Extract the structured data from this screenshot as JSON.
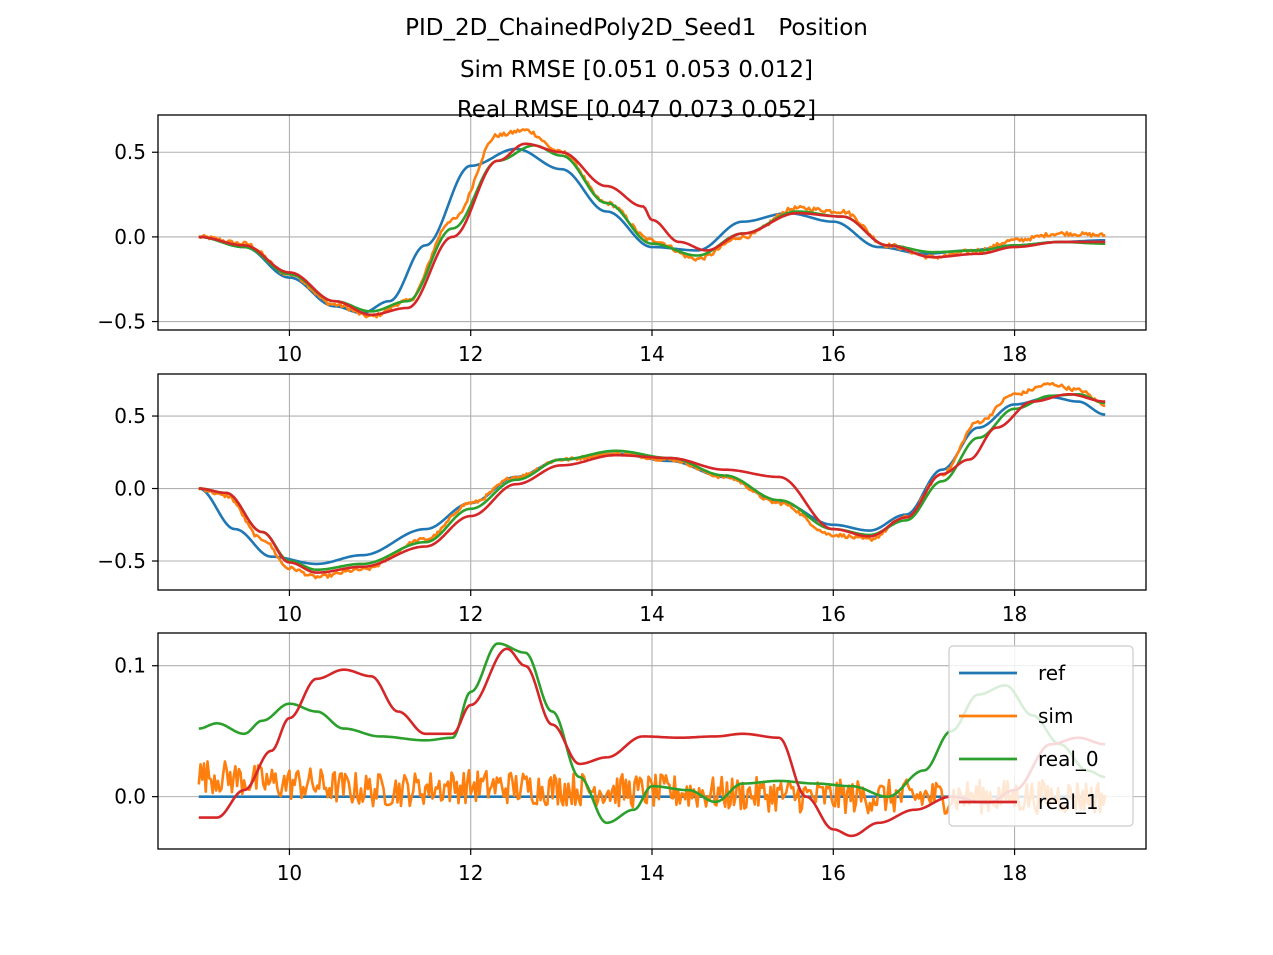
{
  "title_lines": [
    "PID_2D_ChainedPoly2D_Seed1   Position",
    "Sim RMSE [0.051 0.053 0.012]",
    "Real RMSE [0.047 0.073 0.052]"
  ],
  "colors": {
    "ref": "#1f77b4",
    "sim": "#ff7f0e",
    "real_0": "#2ca02c",
    "real_1": "#d62728",
    "grid": "#b0b0b0",
    "axes": "#000000"
  },
  "chart_data": [
    {
      "type": "line",
      "xlim": [
        8.55,
        19.45
      ],
      "ylim": [
        -0.55,
        0.72
      ],
      "xticks": [
        10,
        12,
        14,
        16,
        18
      ],
      "xtick_labels": [
        "10",
        "12",
        "14",
        "16",
        "18"
      ],
      "yticks": [
        -0.5,
        0.0,
        0.5
      ],
      "ytick_labels": [
        "−0.5",
        "0.0",
        "0.5"
      ],
      "grid": true,
      "series": [
        {
          "name": "ref",
          "color": "#1f77b4",
          "noise": 0,
          "x": [
            9.0,
            9.5,
            10.0,
            10.5,
            10.8,
            11.1,
            11.5,
            12.0,
            12.5,
            13.0,
            13.5,
            14.0,
            14.5,
            15.0,
            15.5,
            16.0,
            16.5,
            17.0,
            17.5,
            18.0,
            18.5,
            19.0
          ],
          "y": [
            0.0,
            -0.06,
            -0.24,
            -0.41,
            -0.45,
            -0.38,
            -0.05,
            0.42,
            0.52,
            0.4,
            0.15,
            -0.06,
            -0.08,
            0.09,
            0.14,
            0.09,
            -0.06,
            -0.1,
            -0.08,
            -0.05,
            -0.03,
            -0.02
          ]
        },
        {
          "name": "sim",
          "color": "#ff7f0e",
          "noise": 0.012,
          "x": [
            9.0,
            9.5,
            10.0,
            10.5,
            10.9,
            11.3,
            11.8,
            12.3,
            12.6,
            13.0,
            13.5,
            14.0,
            14.5,
            15.0,
            15.6,
            16.1,
            16.6,
            17.1,
            17.6,
            18.0,
            18.5,
            19.0
          ],
          "y": [
            0.0,
            -0.04,
            -0.22,
            -0.4,
            -0.47,
            -0.38,
            0.1,
            0.6,
            0.63,
            0.5,
            0.2,
            -0.02,
            -0.13,
            0.0,
            0.17,
            0.15,
            -0.05,
            -0.12,
            -0.08,
            -0.02,
            0.02,
            0.01
          ]
        },
        {
          "name": "real_0",
          "color": "#2ca02c",
          "noise": 0,
          "x": [
            9.0,
            9.5,
            10.0,
            10.5,
            10.9,
            11.3,
            11.8,
            12.3,
            12.7,
            13.0,
            13.5,
            14.0,
            14.5,
            15.0,
            15.6,
            16.1,
            16.6,
            17.1,
            17.6,
            18.0,
            18.5,
            19.0
          ],
          "y": [
            0.0,
            -0.06,
            -0.22,
            -0.38,
            -0.44,
            -0.38,
            0.05,
            0.45,
            0.54,
            0.48,
            0.2,
            -0.04,
            -0.11,
            0.02,
            0.15,
            0.12,
            -0.05,
            -0.09,
            -0.08,
            -0.05,
            -0.03,
            -0.04
          ]
        },
        {
          "name": "real_1",
          "color": "#d62728",
          "noise": 0,
          "x": [
            9.0,
            9.5,
            10.0,
            10.5,
            10.9,
            11.3,
            11.8,
            12.3,
            12.6,
            13.0,
            13.5,
            13.9,
            14.0,
            14.3,
            14.6,
            15.0,
            15.6,
            16.1,
            16.6,
            17.1,
            17.6,
            18.0,
            18.5,
            19.0
          ],
          "y": [
            0.0,
            -0.05,
            -0.21,
            -0.38,
            -0.46,
            -0.42,
            0.0,
            0.45,
            0.55,
            0.5,
            0.3,
            0.18,
            0.1,
            -0.03,
            -0.08,
            0.02,
            0.14,
            0.12,
            -0.05,
            -0.12,
            -0.1,
            -0.06,
            -0.03,
            -0.03
          ]
        }
      ]
    },
    {
      "type": "line",
      "xlim": [
        8.55,
        19.45
      ],
      "ylim": [
        -0.7,
        0.79
      ],
      "xticks": [
        10,
        12,
        14,
        16,
        18
      ],
      "xtick_labels": [
        "10",
        "12",
        "14",
        "16",
        "18"
      ],
      "yticks": [
        -0.5,
        0.0,
        0.5
      ],
      "ytick_labels": [
        "−0.5",
        "0.0",
        "0.5"
      ],
      "grid": true,
      "series": [
        {
          "name": "ref",
          "color": "#1f77b4",
          "noise": 0,
          "x": [
            9.0,
            9.4,
            9.8,
            10.3,
            10.8,
            11.5,
            12.0,
            12.5,
            13.0,
            13.6,
            14.2,
            14.8,
            15.4,
            16.0,
            16.4,
            16.8,
            17.2,
            17.6,
            18.0,
            18.4,
            18.7,
            19.0
          ],
          "y": [
            0.0,
            -0.28,
            -0.47,
            -0.52,
            -0.46,
            -0.28,
            -0.1,
            0.08,
            0.2,
            0.24,
            0.19,
            0.08,
            -0.09,
            -0.25,
            -0.29,
            -0.18,
            0.13,
            0.42,
            0.58,
            0.63,
            0.6,
            0.51
          ]
        },
        {
          "name": "sim",
          "color": "#ff7f0e",
          "noise": 0.012,
          "x": [
            9.0,
            9.3,
            9.7,
            10.0,
            10.3,
            10.8,
            11.5,
            12.0,
            12.5,
            13.0,
            13.6,
            14.2,
            14.8,
            15.4,
            16.0,
            16.4,
            16.8,
            17.2,
            17.6,
            18.0,
            18.4,
            18.7,
            19.0
          ],
          "y": [
            0.0,
            -0.05,
            -0.35,
            -0.55,
            -0.61,
            -0.56,
            -0.35,
            -0.1,
            0.08,
            0.2,
            0.24,
            0.2,
            0.08,
            -0.1,
            -0.32,
            -0.35,
            -0.2,
            0.1,
            0.46,
            0.65,
            0.72,
            0.68,
            0.58
          ]
        },
        {
          "name": "real_0",
          "color": "#2ca02c",
          "noise": 0,
          "x": [
            9.0,
            9.3,
            9.7,
            10.0,
            10.3,
            10.8,
            11.5,
            12.0,
            12.5,
            13.0,
            13.6,
            14.2,
            14.8,
            15.4,
            16.0,
            16.4,
            16.8,
            17.2,
            17.6,
            18.0,
            18.4,
            18.7,
            19.0
          ],
          "y": [
            0.0,
            -0.03,
            -0.3,
            -0.5,
            -0.56,
            -0.52,
            -0.37,
            -0.14,
            0.06,
            0.2,
            0.26,
            0.21,
            0.09,
            -0.08,
            -0.28,
            -0.32,
            -0.22,
            0.05,
            0.35,
            0.55,
            0.64,
            0.65,
            0.59
          ]
        },
        {
          "name": "real_1",
          "color": "#d62728",
          "noise": 0,
          "x": [
            9.0,
            9.3,
            9.7,
            10.0,
            10.3,
            10.8,
            11.5,
            12.0,
            12.5,
            13.0,
            13.6,
            14.2,
            14.8,
            15.4,
            16.0,
            16.4,
            16.8,
            17.2,
            17.5,
            17.8,
            18.2,
            18.6,
            19.0
          ],
          "y": [
            0.0,
            -0.03,
            -0.3,
            -0.51,
            -0.58,
            -0.54,
            -0.4,
            -0.19,
            0.03,
            0.16,
            0.23,
            0.21,
            0.13,
            0.08,
            -0.28,
            -0.33,
            -0.2,
            0.1,
            0.2,
            0.42,
            0.6,
            0.65,
            0.6
          ]
        }
      ]
    },
    {
      "type": "line",
      "xlim": [
        8.55,
        19.45
      ],
      "ylim": [
        -0.04,
        0.125
      ],
      "xticks": [
        10,
        12,
        14,
        16,
        18
      ],
      "xtick_labels": [
        "10",
        "12",
        "14",
        "16",
        "18"
      ],
      "yticks": [
        0.0,
        0.1
      ],
      "ytick_labels": [
        "0.0",
        "0.1"
      ],
      "grid": true,
      "legend": {
        "placement": "upper-right",
        "entries": [
          "ref",
          "sim",
          "real_0",
          "real_1"
        ]
      },
      "series": [
        {
          "name": "ref",
          "color": "#1f77b4",
          "noise": 0,
          "x": [
            9.0,
            19.0
          ],
          "y": [
            0.0,
            0.0
          ]
        },
        {
          "name": "sim",
          "color": "#ff7f0e",
          "noise": 0.013,
          "x": [
            9.0,
            10.0,
            11.0,
            12.0,
            13.0,
            14.0,
            15.0,
            16.0,
            17.0,
            18.0,
            19.0
          ],
          "y": [
            0.016,
            0.01,
            0.005,
            0.008,
            0.006,
            0.004,
            0.002,
            0.0,
            0.0,
            0.0,
            0.0
          ]
        },
        {
          "name": "real_0",
          "color": "#2ca02c",
          "noise": 0,
          "x": [
            9.0,
            9.2,
            9.5,
            9.7,
            10.0,
            10.3,
            10.6,
            11.0,
            11.5,
            11.8,
            12.0,
            12.3,
            12.6,
            12.9,
            13.2,
            13.5,
            13.8,
            14.0,
            14.4,
            14.7,
            15.0,
            15.4,
            15.8,
            16.2,
            16.6,
            17.0,
            17.3,
            17.6,
            17.9,
            18.2,
            18.5,
            18.8,
            19.0
          ],
          "y": [
            0.052,
            0.056,
            0.048,
            0.058,
            0.071,
            0.065,
            0.052,
            0.046,
            0.043,
            0.045,
            0.08,
            0.117,
            0.11,
            0.065,
            0.015,
            -0.02,
            -0.01,
            0.008,
            0.005,
            -0.004,
            0.01,
            0.012,
            0.01,
            0.008,
            0.0,
            0.02,
            0.05,
            0.078,
            0.085,
            0.062,
            0.04,
            0.02,
            0.015
          ]
        },
        {
          "name": "real_1",
          "color": "#d62728",
          "noise": 0,
          "x": [
            9.0,
            9.2,
            9.5,
            9.8,
            10.0,
            10.3,
            10.6,
            10.9,
            11.2,
            11.5,
            11.8,
            12.0,
            12.4,
            12.6,
            12.9,
            13.2,
            13.5,
            13.9,
            14.3,
            14.7,
            15.0,
            15.4,
            15.7,
            16.0,
            16.2,
            16.5,
            16.9,
            17.3,
            17.7,
            18.0,
            18.4,
            18.7,
            19.0
          ],
          "y": [
            -0.016,
            -0.016,
            0.005,
            0.035,
            0.06,
            0.09,
            0.097,
            0.092,
            0.065,
            0.048,
            0.048,
            0.07,
            0.113,
            0.1,
            0.055,
            0.025,
            0.03,
            0.046,
            0.045,
            0.046,
            0.048,
            0.045,
            0.0,
            -0.025,
            -0.03,
            -0.02,
            -0.01,
            0.0,
            -0.005,
            0.005,
            0.04,
            0.045,
            0.04
          ]
        }
      ]
    }
  ]
}
